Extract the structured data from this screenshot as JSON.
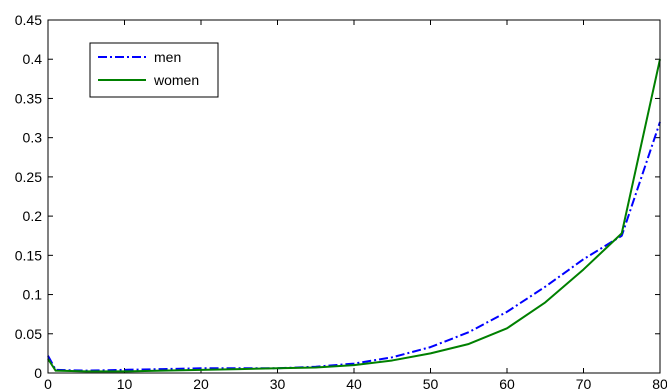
{
  "chart_data": {
    "type": "line",
    "title": "",
    "xlabel": "",
    "ylabel": "",
    "xlim": [
      0,
      80
    ],
    "ylim": [
      0,
      0.45
    ],
    "x_ticks": [
      0,
      10,
      20,
      30,
      40,
      50,
      60,
      70,
      80
    ],
    "y_ticks": [
      0,
      0.05,
      0.1,
      0.15,
      0.2,
      0.25,
      0.3,
      0.35,
      0.4,
      0.45
    ],
    "x_tick_labels": [
      "0",
      "10",
      "20",
      "30",
      "40",
      "50",
      "60",
      "70",
      "80"
    ],
    "y_tick_labels": [
      "0",
      "0.05",
      "0.1",
      "0.15",
      "0.2",
      "0.25",
      "0.3",
      "0.35",
      "0.4",
      "0.45"
    ],
    "grid": false,
    "legend_position": "top-left",
    "series": [
      {
        "name": "men",
        "color": "#0000ff",
        "style": "dash-dot",
        "x": [
          0,
          1,
          5,
          10,
          15,
          20,
          25,
          30,
          35,
          40,
          45,
          50,
          55,
          60,
          65,
          70,
          75,
          80
        ],
        "y": [
          0.022,
          0.004,
          0.003,
          0.004,
          0.005,
          0.006,
          0.006,
          0.006,
          0.008,
          0.012,
          0.02,
          0.033,
          0.052,
          0.078,
          0.11,
          0.145,
          0.175,
          0.32
        ]
      },
      {
        "name": "women",
        "color": "#008000",
        "style": "solid",
        "x": [
          0,
          1,
          5,
          10,
          15,
          20,
          25,
          30,
          35,
          40,
          45,
          50,
          55,
          60,
          65,
          70,
          75,
          80
        ],
        "y": [
          0.018,
          0.003,
          0.002,
          0.002,
          0.003,
          0.004,
          0.005,
          0.006,
          0.007,
          0.01,
          0.016,
          0.025,
          0.037,
          0.057,
          0.09,
          0.132,
          0.178,
          0.4
        ]
      }
    ]
  }
}
